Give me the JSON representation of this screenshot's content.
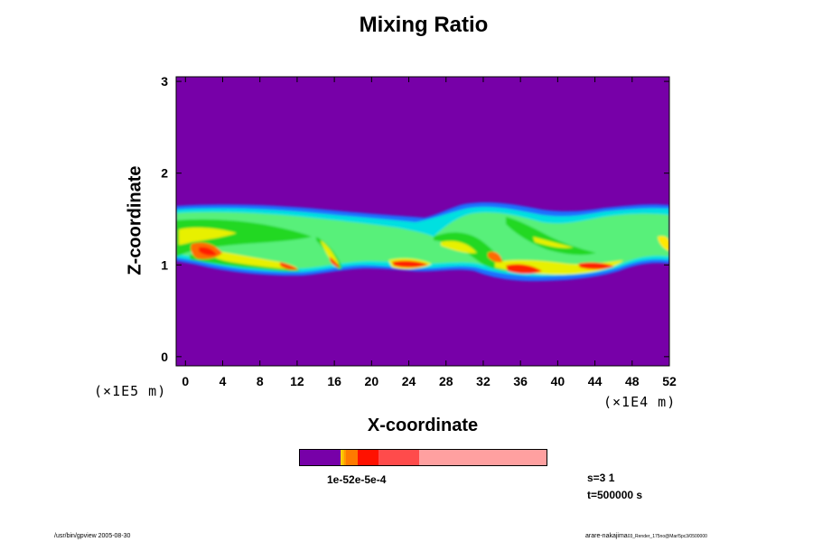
{
  "chart_data": {
    "type": "heatmap",
    "title": "Mixing Ratio",
    "xlabel": "X-coordinate",
    "ylabel": "Z-coordinate",
    "x_unit": "(×1E4 m)",
    "y_unit": "(×1E5 m)",
    "xlim": [
      -1,
      52
    ],
    "ylim": [
      -0.1,
      3.05
    ],
    "x_ticks": [
      "0",
      "4",
      "8",
      "12",
      "16",
      "20",
      "24",
      "28",
      "32",
      "36",
      "40",
      "44",
      "48",
      "52"
    ],
    "y_ticks": [
      "0",
      "1",
      "2",
      "3"
    ],
    "background_color": "#7700a8",
    "colorbar": {
      "segments": [
        {
          "color": "#7700a8",
          "width": 0.165
        },
        {
          "color": "#ffd200",
          "width": 0.007
        },
        {
          "color": "#ffbb00",
          "width": 0.007
        },
        {
          "color": "#ff9a00",
          "width": 0.008
        },
        {
          "color": "#ff7a00",
          "width": 0.048
        },
        {
          "color": "#ff1100",
          "width": 0.083
        },
        {
          "color": "#ff4b4b",
          "width": 0.165
        },
        {
          "color": "#ffa0a0",
          "width": 0.517
        }
      ],
      "labels": "1e-52e-5e-4"
    },
    "annotations": [
      "s=3 1",
      "t=500000 s"
    ]
  },
  "footer_left": "/usr/bin/gpview 2005-08-30",
  "footer_right": "arare-nakajima",
  "footer_right_small": "03_Render_175no@Mar/5pc3/0500000"
}
